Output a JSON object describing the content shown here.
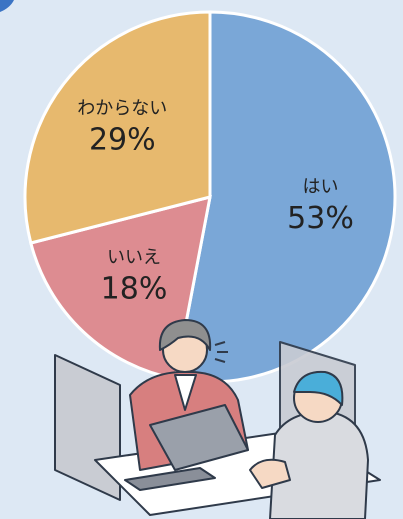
{
  "chart_data": {
    "type": "pie",
    "categories": [
      "はい",
      "いいえ",
      "わからない"
    ],
    "values": [
      53,
      18,
      29
    ],
    "value_labels": [
      "53%",
      "18%",
      "29%"
    ],
    "colors": [
      "#7aa7d7",
      "#dd8c91",
      "#e7b96e"
    ]
  }
}
